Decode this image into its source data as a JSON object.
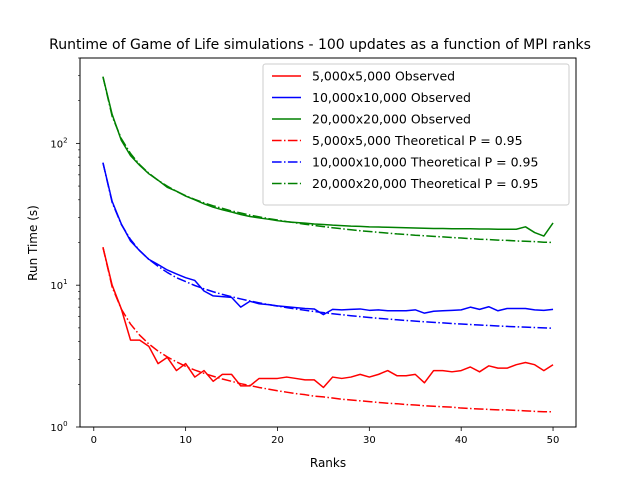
{
  "chart_data": {
    "type": "line",
    "title": "Runtime of Game of Life simulations - 100 updates as a function of MPI ranks",
    "xlabel": "Ranks",
    "ylabel": "Run Time (s)",
    "xlim": [
      -1.5,
      52.5
    ],
    "ylim": [
      1,
      400
    ],
    "yscale": "log",
    "x_ticks": [
      0,
      10,
      20,
      30,
      40,
      50
    ],
    "y_ticks": [
      {
        "value": 1,
        "base": "10",
        "exp": "0"
      },
      {
        "value": 10,
        "base": "10",
        "exp": "1"
      },
      {
        "value": 100,
        "base": "10",
        "exp": "2"
      }
    ],
    "grid": false,
    "legend_position": "top-right",
    "series": [
      {
        "name": "5,000x5,000 Observed",
        "color": "#ff0000",
        "dash": "solid",
        "x": [
          1,
          2,
          3,
          4,
          5,
          6,
          7,
          8,
          9,
          10,
          11,
          12,
          13,
          14,
          15,
          16,
          17,
          18,
          19,
          20,
          21,
          22,
          23,
          24,
          25,
          26,
          27,
          28,
          29,
          30,
          31,
          32,
          33,
          34,
          35,
          36,
          37,
          38,
          39,
          40,
          41,
          42,
          43,
          44,
          45,
          46,
          47,
          48,
          49,
          50
        ],
        "y": [
          18.5,
          10,
          6.8,
          4.1,
          4.1,
          3.7,
          2.8,
          3.1,
          2.5,
          2.8,
          2.25,
          2.5,
          2.1,
          2.35,
          2.35,
          1.95,
          1.95,
          2.2,
          2.2,
          2.2,
          2.25,
          2.2,
          2.15,
          2.15,
          1.9,
          2.25,
          2.2,
          2.25,
          2.35,
          2.25,
          2.35,
          2.5,
          2.3,
          2.3,
          2.35,
          2.05,
          2.5,
          2.5,
          2.45,
          2.5,
          2.65,
          2.45,
          2.7,
          2.6,
          2.6,
          2.75,
          2.85,
          2.75,
          2.5,
          2.75
        ]
      },
      {
        "name": "10,000x10,000 Observed",
        "color": "#0000ff",
        "dash": "solid",
        "x": [
          1,
          2,
          3,
          4,
          5,
          6,
          7,
          8,
          9,
          10,
          11,
          12,
          13,
          14,
          15,
          16,
          17,
          18,
          19,
          20,
          21,
          22,
          23,
          24,
          25,
          26,
          27,
          28,
          29,
          30,
          31,
          32,
          33,
          34,
          35,
          36,
          37,
          38,
          39,
          40,
          41,
          42,
          43,
          44,
          45,
          46,
          47,
          48,
          49,
          50
        ],
        "y": [
          73,
          39,
          27,
          20.5,
          17.5,
          15.2,
          14,
          12.8,
          12,
          11.3,
          10.8,
          9.1,
          8.4,
          8.3,
          8.2,
          7,
          7.7,
          7.4,
          7.3,
          7.15,
          7.05,
          6.95,
          6.85,
          6.8,
          6.2,
          6.75,
          6.7,
          6.75,
          6.8,
          6.65,
          6.7,
          6.6,
          6.6,
          6.6,
          6.7,
          6.35,
          6.55,
          6.6,
          6.65,
          6.7,
          7,
          6.75,
          7.05,
          6.6,
          6.85,
          6.85,
          6.85,
          6.7,
          6.65,
          6.75
        ]
      },
      {
        "name": "20,000x20,000 Observed",
        "color": "#008000",
        "dash": "solid",
        "x": [
          1,
          2,
          3,
          4,
          5,
          6,
          7,
          8,
          9,
          10,
          11,
          12,
          13,
          14,
          15,
          16,
          17,
          18,
          19,
          20,
          21,
          22,
          23,
          24,
          25,
          26,
          27,
          28,
          29,
          30,
          31,
          32,
          33,
          34,
          35,
          36,
          37,
          38,
          39,
          40,
          41,
          42,
          43,
          44,
          45,
          46,
          47,
          48,
          49,
          50
        ],
        "y": [
          295,
          160,
          105,
          82,
          70,
          61,
          55,
          49,
          46,
          42.5,
          40,
          37.5,
          35.5,
          34,
          32.8,
          31.5,
          30.5,
          29.8,
          29.2,
          28.5,
          28,
          27.7,
          27.4,
          27,
          26.8,
          26.5,
          26.3,
          26.1,
          26,
          25.8,
          25.7,
          25.6,
          25.5,
          25.4,
          25.3,
          25.2,
          25.1,
          25.1,
          25,
          25,
          25,
          24.9,
          24.9,
          24.8,
          24.8,
          24.8,
          25.8,
          23.5,
          22.2,
          27.5
        ]
      },
      {
        "name": "5,000x5,000 Theoretical P = 0.95",
        "color": "#ff0000",
        "dash": "dashdot",
        "x": [
          1,
          2,
          3,
          4,
          5,
          6,
          7,
          8,
          9,
          10,
          11,
          12,
          13,
          14,
          15,
          16,
          17,
          18,
          19,
          20,
          21,
          22,
          23,
          24,
          25,
          26,
          27,
          28,
          29,
          30,
          31,
          32,
          33,
          34,
          35,
          36,
          37,
          38,
          39,
          40,
          41,
          42,
          43,
          44,
          45,
          46,
          47,
          48,
          49,
          50
        ],
        "y": [
          18.5,
          9.71,
          6.78,
          5.32,
          4.44,
          3.85,
          3.43,
          3.12,
          2.88,
          2.68,
          2.52,
          2.39,
          2.28,
          2.18,
          2.1,
          2.02,
          1.96,
          1.9,
          1.85,
          1.8,
          1.76,
          1.72,
          1.69,
          1.65,
          1.63,
          1.6,
          1.57,
          1.55,
          1.53,
          1.51,
          1.49,
          1.47,
          1.46,
          1.44,
          1.43,
          1.41,
          1.4,
          1.39,
          1.38,
          1.36,
          1.35,
          1.34,
          1.33,
          1.32,
          1.32,
          1.31,
          1.3,
          1.29,
          1.28,
          1.28
        ]
      },
      {
        "name": "10,000x10,000 Theoretical P = 0.95",
        "color": "#0000ff",
        "dash": "dashdot",
        "x": [
          1,
          2,
          3,
          4,
          5,
          6,
          7,
          8,
          9,
          10,
          11,
          12,
          13,
          14,
          15,
          16,
          17,
          18,
          19,
          20,
          21,
          22,
          23,
          24,
          25,
          26,
          27,
          28,
          29,
          30,
          31,
          32,
          33,
          34,
          35,
          36,
          37,
          38,
          39,
          40,
          41,
          42,
          43,
          44,
          45,
          46,
          47,
          48,
          49,
          50
        ],
        "y": [
          73,
          38.3,
          26.8,
          21,
          17.5,
          15.2,
          13.6,
          12.3,
          11.3,
          10.6,
          9.95,
          9.43,
          8.99,
          8.61,
          8.29,
          8.0,
          7.74,
          7.51,
          7.31,
          7.12,
          6.95,
          6.8,
          6.65,
          6.52,
          6.4,
          6.29,
          6.19,
          6.09,
          6.0,
          5.92,
          5.84,
          5.77,
          5.7,
          5.64,
          5.58,
          5.52,
          5.47,
          5.42,
          5.37,
          5.32,
          5.28,
          5.24,
          5.2,
          5.16,
          5.12,
          5.09,
          5.06,
          5.03,
          5.0,
          4.97
        ]
      },
      {
        "name": "20,000x20,000 Theoretical P = 0.95",
        "color": "#008000",
        "dash": "dashdot",
        "x": [
          1,
          2,
          3,
          4,
          5,
          6,
          7,
          8,
          9,
          10,
          11,
          12,
          13,
          14,
          15,
          16,
          17,
          18,
          19,
          20,
          21,
          22,
          23,
          24,
          25,
          26,
          27,
          28,
          29,
          30,
          31,
          32,
          33,
          34,
          35,
          36,
          37,
          38,
          39,
          40,
          41,
          42,
          43,
          44,
          45,
          46,
          47,
          48,
          49,
          50
        ],
        "y": [
          295,
          155,
          108,
          84.8,
          70.8,
          61.5,
          54.9,
          49.9,
          45.9,
          42.8,
          40.2,
          38.1,
          36.3,
          34.8,
          33.4,
          32.3,
          31.2,
          30.3,
          29.5,
          28.8,
          28.1,
          27.5,
          26.9,
          26.4,
          25.9,
          25.4,
          25.0,
          24.6,
          24.2,
          23.9,
          23.6,
          23.3,
          23.0,
          22.8,
          22.5,
          22.3,
          22.1,
          21.9,
          21.7,
          21.5,
          21.3,
          21.1,
          21.0,
          20.8,
          20.7,
          20.5,
          20.4,
          20.3,
          20.1,
          20.0
        ]
      }
    ]
  }
}
